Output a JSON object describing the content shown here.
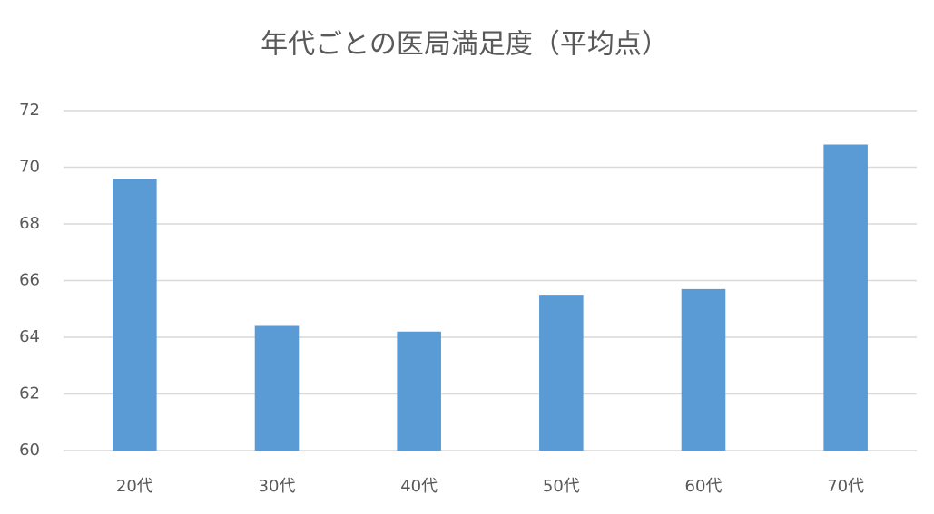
{
  "chart_data": {
    "type": "bar",
    "title": "年代ごとの医局満足度（平均点）",
    "categories": [
      "20代",
      "30代",
      "40代",
      "50代",
      "60代",
      "70代"
    ],
    "values": [
      69.6,
      64.4,
      64.2,
      65.5,
      65.7,
      70.8
    ],
    "color": "#5b9bd5",
    "ylim": [
      60,
      72
    ],
    "yticks": [
      60,
      62,
      64,
      66,
      68,
      70,
      72
    ],
    "grid": true
  }
}
